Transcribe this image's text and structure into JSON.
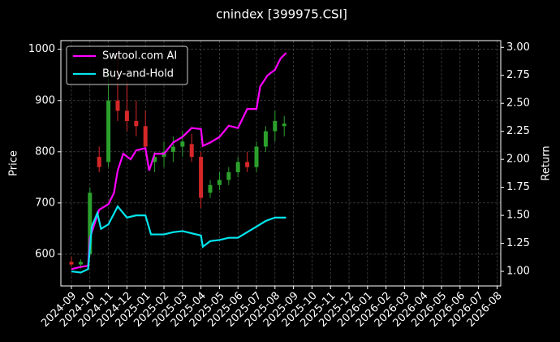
{
  "chart_data": {
    "type": "candlestick",
    "title": "cnindex [399975.CSI]",
    "ylabel": "Price",
    "y2label": "Return",
    "grid": true,
    "legend": "upper left",
    "xlim": [
      -0.57,
      23.2
    ],
    "xticks": [
      {
        "value": 0,
        "label": "2024-09"
      },
      {
        "value": 1,
        "label": "2024-10"
      },
      {
        "value": 2,
        "label": "2024-11"
      },
      {
        "value": 3,
        "label": "2024-12"
      },
      {
        "value": 4,
        "label": "2025-01"
      },
      {
        "value": 5,
        "label": "2025-02"
      },
      {
        "value": 6,
        "label": "2025-03"
      },
      {
        "value": 7,
        "label": "2025-04"
      },
      {
        "value": 8,
        "label": "2025-05"
      },
      {
        "value": 9,
        "label": "2025-06"
      },
      {
        "value": 10,
        "label": "2025-07"
      },
      {
        "value": 11,
        "label": "2025-08"
      },
      {
        "value": 12,
        "label": "2025-09"
      },
      {
        "value": 13,
        "label": "2025-10"
      },
      {
        "value": 14,
        "label": "2025-11"
      },
      {
        "value": 15,
        "label": "2025-12"
      },
      {
        "value": 16,
        "label": "2026-01"
      },
      {
        "value": 17,
        "label": "2026-02"
      },
      {
        "value": 18,
        "label": "2026-03"
      },
      {
        "value": 19,
        "label": "2026-04"
      },
      {
        "value": 20,
        "label": "2026-05"
      },
      {
        "value": 21,
        "label": "2026-06"
      },
      {
        "value": 22,
        "label": "2026-07"
      },
      {
        "value": 23,
        "label": "2026-08"
      }
    ],
    "ylim": [
      538,
      1017
    ],
    "yticks": [
      600,
      700,
      800,
      900,
      1000
    ],
    "y2lim": [
      0.87,
      3.06
    ],
    "y2ticks": [
      {
        "value": 1,
        "label": "1.00"
      },
      {
        "value": 1.25,
        "label": "1.25"
      },
      {
        "value": 1.5,
        "label": "1.50"
      },
      {
        "value": 1.75,
        "label": "1.75"
      },
      {
        "value": 2,
        "label": "2.00"
      },
      {
        "value": 2.25,
        "label": "2.25"
      },
      {
        "value": 2.5,
        "label": "2.50"
      },
      {
        "value": 2.75,
        "label": "2.75"
      },
      {
        "value": 3,
        "label": "3.00"
      }
    ],
    "candles": {
      "up_color": "#2ca02c",
      "down_color": "#d62728",
      "x": [
        0,
        0.5,
        1,
        1.5,
        2,
        2.5,
        3,
        3.5,
        4,
        4.5,
        5,
        5.5,
        6,
        6.5,
        7,
        7.5,
        8,
        8.5,
        9,
        9.5,
        10,
        10.5,
        11,
        11.5
      ],
      "open": [
        585,
        580,
        600,
        790,
        780,
        900,
        880,
        860,
        850,
        780,
        790,
        800,
        810,
        815,
        790,
        720,
        735,
        745,
        760,
        780,
        770,
        810,
        840,
        850
      ],
      "high": [
        595,
        590,
        730,
        810,
        960,
        1000,
        940,
        900,
        880,
        800,
        820,
        830,
        840,
        835,
        800,
        745,
        760,
        770,
        790,
        800,
        820,
        850,
        880,
        870
      ],
      "low": [
        575,
        572,
        595,
        760,
        770,
        860,
        840,
        830,
        800,
        760,
        770,
        780,
        790,
        780,
        690,
        710,
        725,
        735,
        750,
        760,
        760,
        800,
        820,
        830
      ],
      "close": [
        580,
        585,
        720,
        770,
        900,
        880,
        860,
        850,
        810,
        790,
        800,
        810,
        820,
        790,
        710,
        735,
        745,
        760,
        780,
        770,
        810,
        840,
        860,
        855
      ]
    },
    "series": [
      {
        "name": "Swtool.com AI",
        "color": "#ff00ff",
        "axis": "y2",
        "x": [
          0,
          0.5,
          0.9,
          1,
          1.3,
          1.5,
          2,
          2.3,
          2.5,
          2.8,
          3.2,
          3.5,
          4,
          4.2,
          4.5,
          5,
          5.5,
          6,
          6.5,
          7,
          7.1,
          7.5,
          8,
          8.5,
          9,
          9.5,
          10,
          10.2,
          10.6,
          11,
          11.3,
          11.6
        ],
        "values": [
          1.02,
          1.04,
          1.05,
          1.3,
          1.45,
          1.55,
          1.6,
          1.7,
          1.9,
          2.05,
          2.0,
          2.08,
          2.1,
          1.9,
          2.05,
          2.05,
          2.15,
          2.2,
          2.28,
          2.27,
          2.12,
          2.15,
          2.2,
          2.3,
          2.28,
          2.45,
          2.45,
          2.65,
          2.75,
          2.8,
          2.9,
          2.95
        ]
      },
      {
        "name": "Buy-and-Hold",
        "color": "#00e5ee",
        "axis": "y2",
        "x": [
          0,
          0.5,
          0.9,
          1.1,
          1.4,
          1.6,
          2,
          2.5,
          3,
          3.5,
          4,
          4.3,
          5,
          5.5,
          6,
          6.5,
          7,
          7.1,
          7.5,
          8,
          8.5,
          9,
          9.5,
          10,
          10.5,
          11,
          11.6
        ],
        "values": [
          1.0,
          0.99,
          1.02,
          1.4,
          1.52,
          1.38,
          1.42,
          1.58,
          1.48,
          1.5,
          1.5,
          1.33,
          1.33,
          1.35,
          1.36,
          1.34,
          1.32,
          1.22,
          1.27,
          1.28,
          1.3,
          1.3,
          1.35,
          1.4,
          1.45,
          1.48,
          1.48
        ]
      }
    ]
  }
}
